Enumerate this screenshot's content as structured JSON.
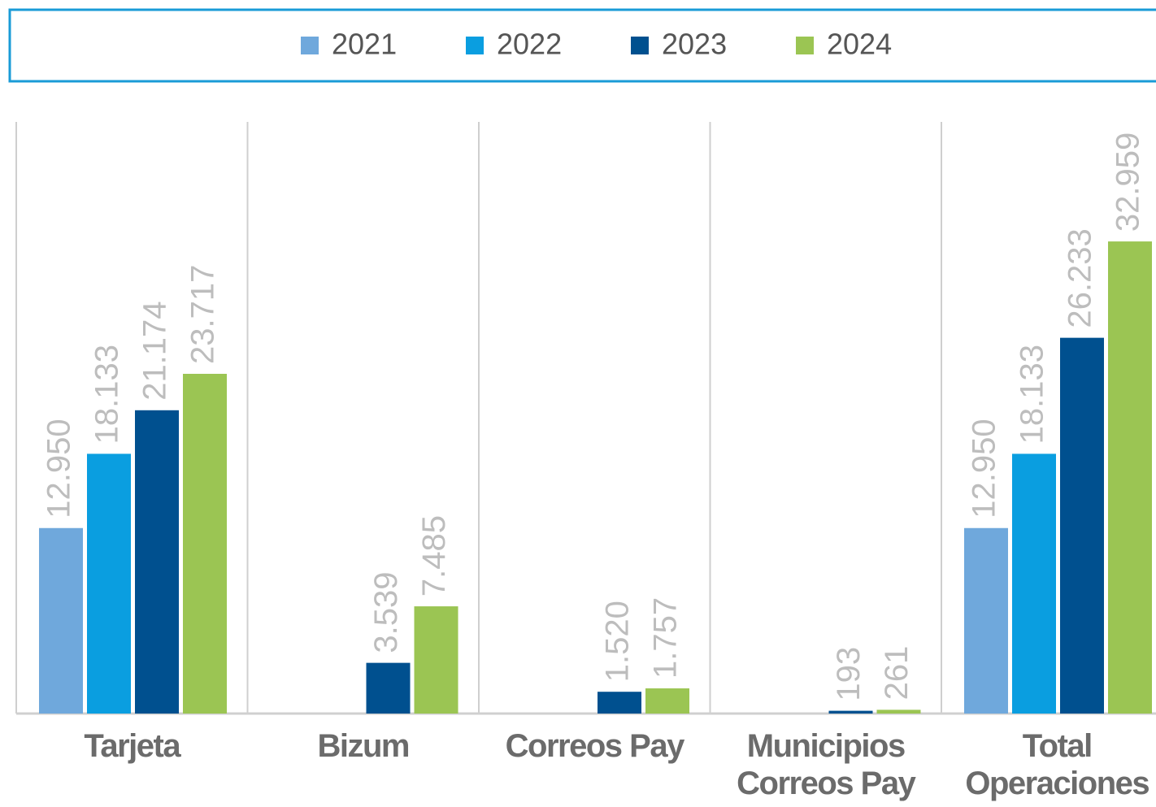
{
  "chart_data": {
    "type": "bar",
    "categories": [
      "Tarjeta",
      "Bizum",
      "Correos Pay",
      "Municipios Correos Pay",
      "Total Operaciones"
    ],
    "series": [
      {
        "name": "2021",
        "color": "#6fa8dc",
        "values": [
          12950,
          null,
          null,
          null,
          12950
        ],
        "value_labels": [
          "12.950",
          null,
          null,
          null,
          "12.950"
        ]
      },
      {
        "name": "2022",
        "color": "#0a9ee0",
        "values": [
          18133,
          null,
          null,
          null,
          18133
        ],
        "value_labels": [
          "18.133",
          null,
          null,
          null,
          "18.133"
        ]
      },
      {
        "name": "2023",
        "color": "#00508f",
        "values": [
          21174,
          3539,
          1520,
          193,
          26233
        ],
        "value_labels": [
          "21.174",
          "3.539",
          "1.520",
          "193",
          "26.233"
        ]
      },
      {
        "name": "2024",
        "color": "#9bc553",
        "values": [
          23717,
          7485,
          1757,
          261,
          32959
        ],
        "value_labels": [
          "23.717",
          "7.485",
          "1.757",
          "261",
          "32.959"
        ]
      }
    ],
    "ylim": [
      0,
      40000
    ],
    "legend": "top"
  }
}
